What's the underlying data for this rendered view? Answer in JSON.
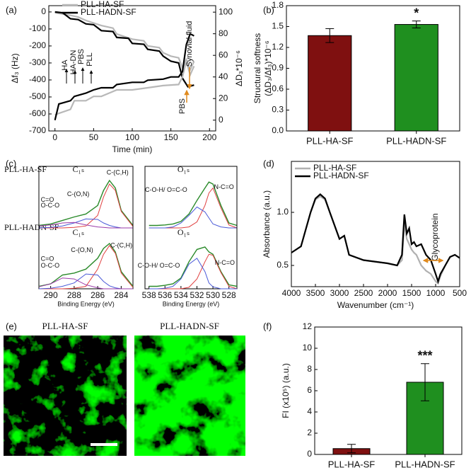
{
  "chart_data": [
    {
      "type": "line",
      "panel": "(a)",
      "xlabel": "Time (min)",
      "ylabel": "Δf₃ (Hz)",
      "y2label": "ΔD₃*10⁻⁶",
      "xlim": [
        -8,
        208
      ],
      "xticks": [
        0,
        50,
        100,
        150,
        200
      ],
      "ylim": [
        -700,
        37
      ],
      "yticks": [
        -700,
        -600,
        -500,
        -400,
        -300,
        -200,
        -100,
        0
      ],
      "y2lim": [
        -10,
        106
      ],
      "y2ticks": [
        0,
        20,
        40,
        60,
        80,
        100
      ],
      "series": [
        {
          "name": "PLL-HA-SF",
          "color": "#b8b8b8",
          "x": [
            0,
            20,
            30,
            40,
            60,
            75,
            80,
            100,
            115,
            120,
            135,
            140,
            150,
            160,
            165,
            170,
            175,
            180
          ],
          "values": [
            -5,
            -20,
            -30,
            -50,
            -80,
            -95,
            -130,
            -160,
            -170,
            -200,
            -210,
            -240,
            -260,
            -270,
            -330,
            -280,
            -340,
            -290
          ]
        },
        {
          "name": "PLL-HADN-SF",
          "color": "#000000",
          "x": [
            0,
            10,
            20,
            30,
            40,
            50,
            60,
            75,
            80,
            95,
            100,
            115,
            120,
            135,
            140,
            150,
            160,
            165,
            172,
            180
          ],
          "values": [
            0,
            -5,
            -40,
            -45,
            -70,
            -75,
            -110,
            -115,
            -150,
            -155,
            -185,
            -190,
            -220,
            -230,
            -260,
            -290,
            -300,
            -390,
            -440,
            -430
          ]
        },
        {
          "color": "#b8b8b8",
          "axis": "y2",
          "x": [
            0,
            20,
            25,
            40,
            50,
            60,
            80,
            100,
            120,
            140,
            160,
            165,
            170,
            175,
            180
          ],
          "values": [
            5,
            10,
            18,
            18,
            22,
            22,
            28,
            28,
            30,
            32,
            33,
            40,
            55,
            42,
            50
          ]
        },
        {
          "color": "#000000",
          "axis": "y2",
          "x": [
            0,
            5,
            20,
            25,
            40,
            50,
            60,
            75,
            80,
            100,
            115,
            120,
            140,
            150,
            160,
            165,
            170,
            175,
            180
          ],
          "values": [
            0,
            15,
            18,
            22,
            25,
            28,
            30,
            30,
            33,
            35,
            35,
            37,
            38,
            40,
            40,
            45,
            70,
            80,
            78
          ]
        }
      ],
      "annotations": [
        {
          "text": "HA"
        },
        {
          "text": "HA-DN"
        },
        {
          "text": "PBS"
        },
        {
          "text": "PLL"
        },
        {
          "text": "Synovial fluid",
          "color": "#e08a1e"
        },
        {
          "text": "PBS",
          "color": "#e08a1e"
        }
      ]
    },
    {
      "type": "bar",
      "panel": "(b)",
      "ylabel": [
        "Structural softness",
        "(ΔD₃/Δf₃)*10⁻⁶"
      ],
      "categories": [
        "PLL-HA-SF",
        "PLL-HADN-SF"
      ],
      "values": [
        1.37,
        1.53
      ],
      "errors": [
        0.1,
        0.05
      ],
      "colors": [
        "#7f1010",
        "#1f8f1f"
      ],
      "annotation": "*",
      "ylim": [
        0,
        1.8
      ],
      "yticks": [
        {
          "value": 0,
          "label": "0.0"
        },
        0.3,
        0.6,
        0.9,
        1.2,
        1.5,
        1.8
      ]
    },
    {
      "type": "xps",
      "panel": "(c)",
      "samples": [
        "PLL-HA-SF",
        "PLL-HADN-SF"
      ],
      "ylim": [
        0,
        1.05
      ],
      "subplots": [
        {
          "title": "C₁ₛ",
          "xlim": [
            291,
            283
          ],
          "x": [
            291,
            290,
            289,
            288,
            287,
            286,
            285.5,
            285,
            284.5,
            284,
            283
          ],
          "series": [
            {
              "color": "#2a8a2a",
              "values": [
                0.05,
                0.08,
                0.15,
                0.22,
                0.28,
                0.45,
                0.75,
                0.95,
                0.8,
                0.35,
                0.05
              ]
            },
            {
              "color": "#e04040",
              "values": [
                0,
                0,
                0,
                0.01,
                0.04,
                0.25,
                0.62,
                0.88,
                0.75,
                0.33,
                0.03
              ]
            },
            {
              "color": "#4a5ad8",
              "values": [
                0,
                0.01,
                0.04,
                0.1,
                0.18,
                0.17,
                0.1,
                0.05,
                0.02,
                0,
                0
              ]
            },
            {
              "color": "#9a3aa8",
              "values": [
                0.04,
                0.06,
                0.1,
                0.11,
                0.06,
                0.02,
                0.01,
                0,
                0,
                0,
                0
              ]
            }
          ],
          "annotations": [
            "C-(C,H)",
            "C-(O,N)",
            "C=O",
            "O-C-O"
          ]
        },
        {
          "title": "O₁ₛ",
          "xlim": [
            538.5,
            527
          ],
          "x": [
            538,
            537,
            536,
            535,
            534,
            533,
            532,
            531,
            530.5,
            530,
            529,
            528,
            527
          ],
          "series": [
            {
              "color": "#2a8a2a",
              "values": [
                0.05,
                0.05,
                0.06,
                0.08,
                0.13,
                0.28,
                0.55,
                0.8,
                0.92,
                0.88,
                0.45,
                0.1,
                0.05
              ]
            },
            {
              "color": "#e04040",
              "values": [
                0,
                0,
                0,
                0,
                0,
                0.02,
                0.12,
                0.45,
                0.7,
                0.8,
                0.4,
                0.06,
                0
              ]
            },
            {
              "color": "#4a5ad8",
              "values": [
                0,
                0,
                0,
                0.02,
                0.1,
                0.25,
                0.42,
                0.32,
                0.2,
                0.08,
                0.02,
                0,
                0
              ]
            }
          ],
          "annotations": [
            "C-O-H/ O=C-O",
            "N-C=O"
          ]
        },
        {
          "title": "C₁ₛ",
          "xlim": [
            291,
            283
          ],
          "x": [
            291,
            290,
            289,
            288,
            287,
            286,
            285.5,
            285,
            284.5,
            284,
            283
          ],
          "xticks": [
            290,
            288,
            286,
            284
          ],
          "xlabel": "Binding Energy (eV)",
          "series": [
            {
              "color": "#2a8a2a",
              "values": [
                0.05,
                0.1,
                0.28,
                0.32,
                0.4,
                0.62,
                0.82,
                0.92,
                0.75,
                0.35,
                0.05
              ]
            },
            {
              "color": "#e04040",
              "values": [
                0,
                0,
                0,
                0.01,
                0.05,
                0.4,
                0.7,
                0.88,
                0.72,
                0.32,
                0.03
              ]
            },
            {
              "color": "#4a5ad8",
              "values": [
                0,
                0.01,
                0.05,
                0.12,
                0.3,
                0.28,
                0.15,
                0.06,
                0.02,
                0,
                0
              ]
            },
            {
              "color": "#9a3aa8",
              "values": [
                0.04,
                0.1,
                0.22,
                0.2,
                0.08,
                0.02,
                0,
                0,
                0,
                0,
                0
              ]
            }
          ],
          "annotations": [
            "C-(C,H)",
            "C-(O,N)",
            "C=O",
            "O-C-O"
          ]
        },
        {
          "title": "O₁ₛ",
          "xlim": [
            538.5,
            527
          ],
          "x": [
            538,
            537,
            536,
            535,
            534,
            533,
            532,
            531,
            530.5,
            530,
            529,
            528,
            527
          ],
          "xticks": [
            538,
            536,
            534,
            532,
            530,
            528
          ],
          "xlabel": "Binding Energy (eV)",
          "series": [
            {
              "color": "#2a8a2a",
              "values": [
                0.05,
                0.05,
                0.07,
                0.1,
                0.22,
                0.55,
                0.8,
                0.85,
                0.75,
                0.7,
                0.35,
                0.08,
                0.05
              ]
            },
            {
              "color": "#e04040",
              "values": [
                0,
                0,
                0,
                0,
                0,
                0.03,
                0.2,
                0.55,
                0.7,
                0.68,
                0.33,
                0.05,
                0
              ]
            },
            {
              "color": "#4a5ad8",
              "values": [
                0,
                0,
                0.01,
                0.05,
                0.2,
                0.5,
                0.62,
                0.35,
                0.12,
                0.04,
                0,
                0,
                0
              ]
            }
          ],
          "annotations": [
            "C-O-H/ O=C-O",
            "N-C=O"
          ]
        }
      ]
    },
    {
      "type": "line",
      "panel": "(d)",
      "xlabel": "Wavenumber (cm⁻¹)",
      "ylabel": "Absorbance (a.u.)",
      "xlim": [
        4000,
        500
      ],
      "xticks": [
        4000,
        3500,
        3000,
        2500,
        2000,
        1500,
        1000,
        500
      ],
      "ylim": [
        0.3,
        1.48
      ],
      "yticks": [
        0.5,
        {
          "value": 1,
          "label": "1.0"
        }
      ],
      "x": [
        4000,
        3800,
        3600,
        3500,
        3400,
        3300,
        3200,
        3000,
        2900,
        2800,
        2500,
        2000,
        1800,
        1700,
        1650,
        1600,
        1550,
        1500,
        1450,
        1400,
        1300,
        1200,
        1100,
        1000,
        950,
        900,
        800,
        700,
        600,
        500
      ],
      "series": [
        {
          "name": "PLL-HA-SF",
          "color": "#b0b0b0",
          "values": [
            0.62,
            0.68,
            1.0,
            1.12,
            1.15,
            1.12,
            1.0,
            0.75,
            0.78,
            0.6,
            0.55,
            0.52,
            0.5,
            0.55,
            0.9,
            0.75,
            0.7,
            0.65,
            0.62,
            0.6,
            0.5,
            0.45,
            0.42,
            0.35,
            0.33,
            0.4,
            0.5,
            0.58,
            0.6,
            0.57
          ]
        },
        {
          "name": "PLL-HADN-SF",
          "color": "#000000",
          "values": [
            0.62,
            0.68,
            1.0,
            1.13,
            1.17,
            1.13,
            1.0,
            0.75,
            0.78,
            0.6,
            0.55,
            0.52,
            0.5,
            0.6,
            0.98,
            0.8,
            0.85,
            0.7,
            0.72,
            0.68,
            0.7,
            0.6,
            0.55,
            0.42,
            0.35,
            0.42,
            0.5,
            0.58,
            0.6,
            0.57
          ]
        }
      ],
      "annotations": [
        {
          "text": "Glycoprotein",
          "color": "#e08a1e"
        }
      ]
    },
    {
      "type": "bar",
      "panel": "(f)",
      "ylabel": [
        "FI (x10⁵) (a.u.)"
      ],
      "categories": [
        "PLL-HA-SF",
        "PLL-HADN-SF"
      ],
      "values": [
        0.55,
        6.8
      ],
      "errors": [
        0.4,
        1.75
      ],
      "colors": [
        "#7f1010",
        "#1f8f1f"
      ],
      "annotation": "***",
      "ylim": [
        0,
        12
      ],
      "yticks": [
        0,
        2,
        4,
        6,
        8,
        10,
        12
      ]
    }
  ],
  "images": {
    "panel": "(e)",
    "titles": [
      "PLL-HA-SF",
      "PLL-HADN-SF"
    ]
  }
}
